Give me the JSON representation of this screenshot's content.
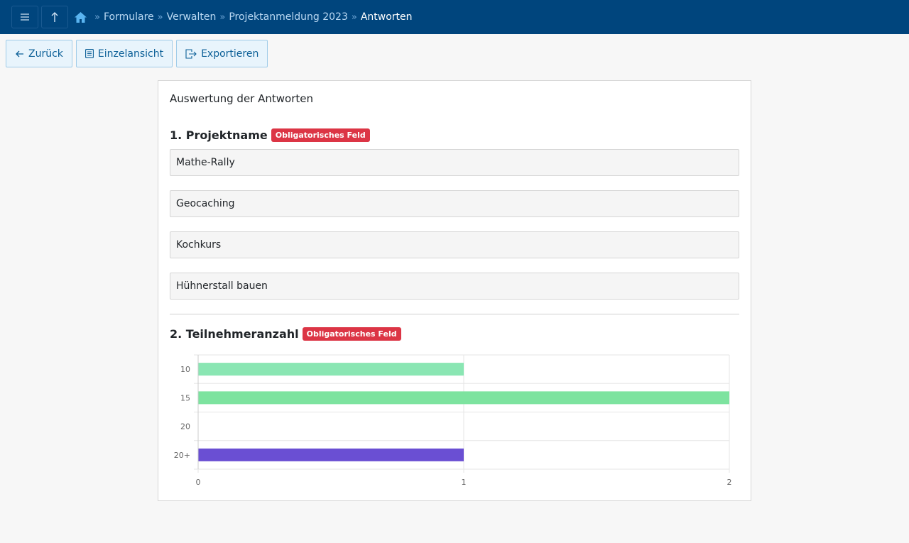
{
  "topbar": {
    "menu_icon": "menu-icon",
    "up_icon": "arrow-up-icon",
    "home_icon": "home-icon",
    "breadcrumb": [
      "Formulare",
      "Verwalten",
      "Projektanmeldung 2023"
    ],
    "current": "Antworten",
    "separator": "»"
  },
  "toolbar": {
    "back_label": "Zurück",
    "single_view_label": "Einzelansicht",
    "export_label": "Exportieren"
  },
  "card": {
    "title": "Auswertung der Antworten"
  },
  "questions": [
    {
      "title": "1. Projektname",
      "badge": "Obligatorisches Feld",
      "answers": [
        "Mathe-Rally",
        "Geocaching",
        "Kochkurs",
        "Hühnerstall bauen"
      ]
    },
    {
      "title": "2. Teilnehmeranzahl",
      "badge": "Obligatorisches Feld"
    }
  ],
  "chart_data": {
    "type": "bar",
    "orientation": "horizontal",
    "categories": [
      "10",
      "15",
      "20",
      "20+"
    ],
    "values": [
      1,
      2,
      0,
      1
    ],
    "colors": [
      "#8ae6b3",
      "#7de39f",
      "#9ad0f5",
      "#6a4fd3"
    ],
    "xlim": [
      0,
      2
    ],
    "xticks": [
      "0",
      "1",
      "2"
    ],
    "grid": true
  }
}
